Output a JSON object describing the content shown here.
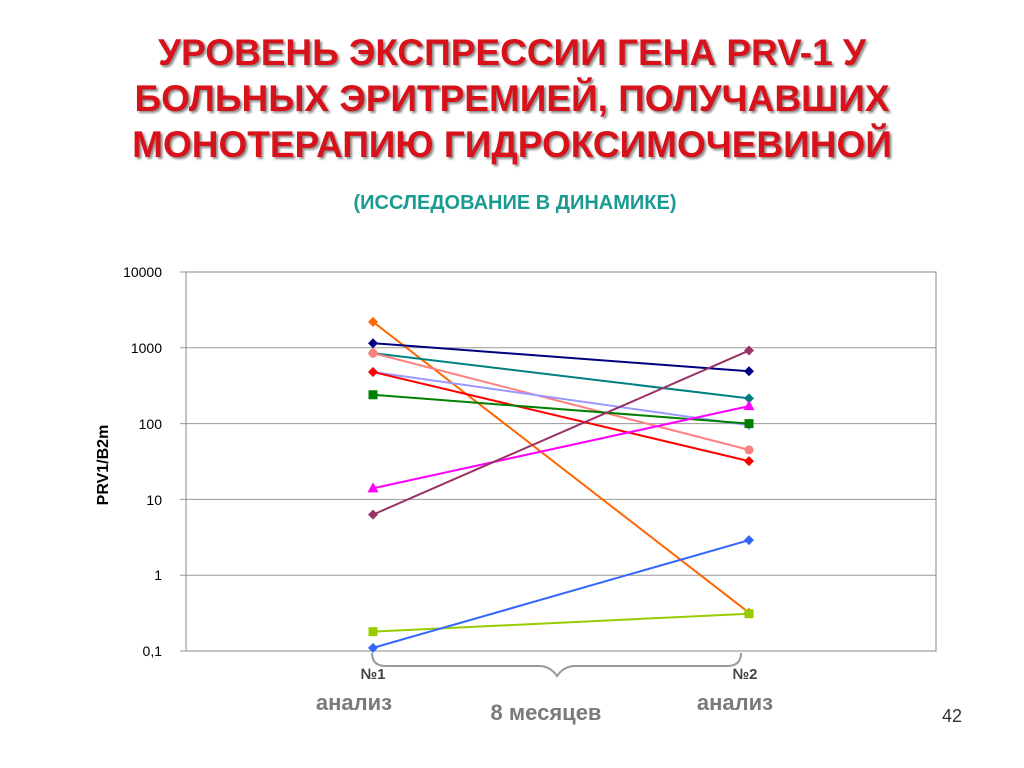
{
  "slide": {
    "title_lines": [
      "УРОВЕНЬ ЭКСПРЕССИИ ГЕНА PRV-1 У",
      "БОЛЬНЫХ ЭРИТРЕМИЕЙ, ПОЛУЧАВШИХ",
      "МОНОТЕРАПИЮ ГИДРОКСИМОЧЕВИНОЙ"
    ],
    "subtitle": "(ИССЛЕДОВАНИЕ В ДИНАМИКЕ)",
    "page_number": "42",
    "x_sublabel": "анализ",
    "span_label": "8 месяцев"
  },
  "chart_data": {
    "type": "line",
    "title": "",
    "xlabel": "",
    "ylabel": "PRV1/B2m",
    "yscale": "log",
    "ylim": [
      0.1,
      10000
    ],
    "ytick_labels": [
      "0,1",
      "1",
      "10",
      "100",
      "1000",
      "10000"
    ],
    "categories": [
      "№1",
      "№2"
    ],
    "grid": true,
    "series": [
      {
        "color": "#ff6600",
        "marker": "diamond",
        "values": [
          2200,
          0.32
        ]
      },
      {
        "color": "#000080",
        "marker": "diamond",
        "values": [
          1150,
          490
        ]
      },
      {
        "color": "#008080",
        "marker": "diamond",
        "values": [
          850,
          215
        ]
      },
      {
        "color": "#ff8080",
        "marker": "circle",
        "values": [
          850,
          45
        ]
      },
      {
        "color": "#9999ff",
        "marker": "diamond",
        "values": [
          480,
          95
        ]
      },
      {
        "color": "#ff0000",
        "marker": "diamond",
        "values": [
          480,
          32
        ]
      },
      {
        "color": "#008000",
        "marker": "square",
        "values": [
          240,
          100
        ]
      },
      {
        "color": "#ff00ff",
        "marker": "triangle",
        "values": [
          14,
          170
        ]
      },
      {
        "color": "#993366",
        "marker": "diamond",
        "values": [
          6.3,
          920
        ]
      },
      {
        "color": "#99cc00",
        "marker": "square",
        "values": [
          0.18,
          0.31
        ]
      },
      {
        "color": "#3366ff",
        "marker": "diamond",
        "values": [
          0.11,
          2.9
        ]
      }
    ]
  }
}
